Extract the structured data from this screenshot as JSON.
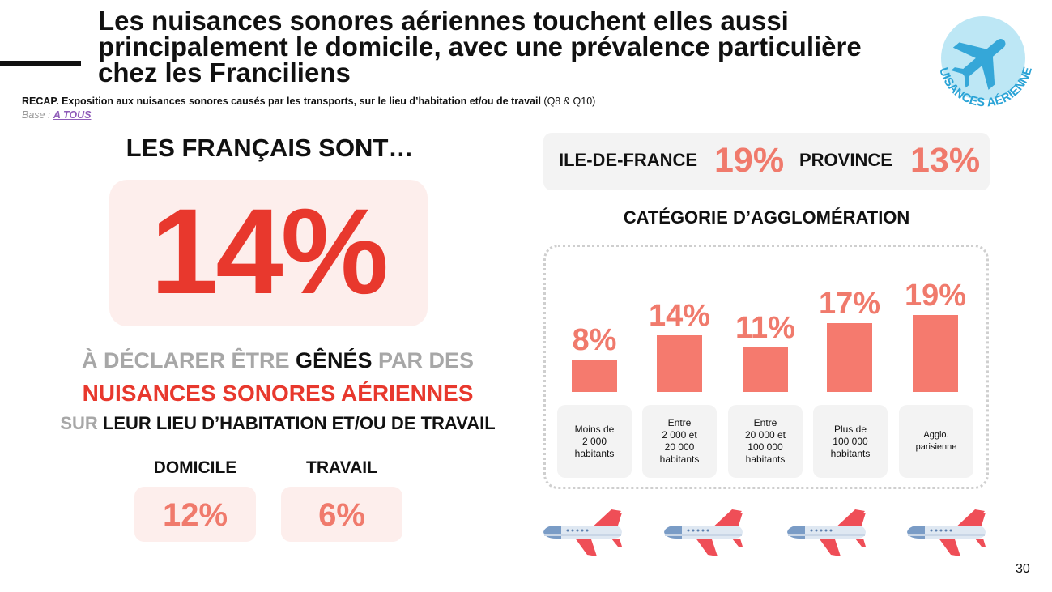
{
  "title": "Les nuisances sonores aériennes touchent elles aussi principalement le domicile, avec une prévalence particulière chez les Franciliens",
  "subtitle_bold": "RECAP. Exposition aux nuisances sonores causés par les transports, sur le lieu d’habitation et/ou de travail",
  "subtitle_suffix": " (Q8 & Q10)",
  "base_label": "Base : ",
  "base_link": "A TOUS",
  "badge_text": "NUISANCES AÉRIENNES",
  "left_heading": "LES FRANÇAIS SONT…",
  "headline_pct": "14%",
  "desc": {
    "l1_a": "À DÉCLARER ÊTRE ",
    "l1_b": "GÊNÉS",
    "l1_c": " PAR DES",
    "l2": "NUISANCES SONORES AÉRIENNES",
    "l3_a": "SUR ",
    "l3_b": "LEUR LIEU D’HABITATION ET/OU DE TRAVAIL"
  },
  "split": [
    {
      "label": "DOMICILE",
      "value": "12%"
    },
    {
      "label": "TRAVAIL",
      "value": "6%"
    }
  ],
  "regions": [
    {
      "label": "ILE-DE-FRANCE",
      "value": "19%"
    },
    {
      "label": "PROVINCE",
      "value": "13%"
    }
  ],
  "category_title": "CATÉGORIE D’AGGLOMÉRATION",
  "page_number": "30",
  "colors": {
    "accent": "#e8382d",
    "bar": "#f57a6e",
    "pct_soft": "#f07a6c",
    "box_bg": "#fdeeec"
  },
  "chart_data": {
    "type": "bar",
    "title": "CATÉGORIE D’AGGLOMÉRATION",
    "categories": [
      "Moins de\n2 000\nhabitants",
      "Entre\n2 000 et\n20 000\nhabitants",
      "Entre\n20 000 et\n100 000\nhabitants",
      "Plus de\n100 000\nhabitants",
      "Agglo.\nparisienne"
    ],
    "values": [
      8,
      14,
      11,
      17,
      19
    ],
    "value_labels": [
      "8%",
      "14%",
      "11%",
      "17%",
      "19%"
    ],
    "ylim": [
      0,
      20
    ],
    "grid": false
  }
}
